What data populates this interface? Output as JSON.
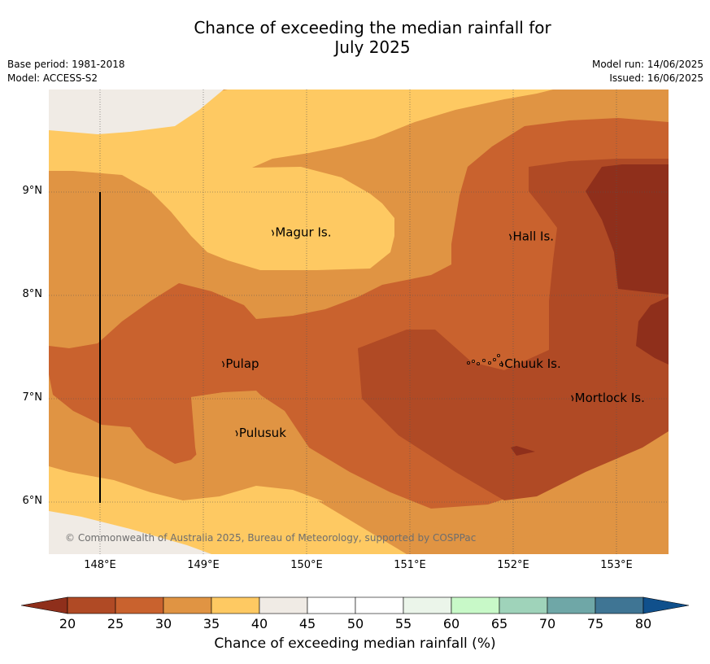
{
  "title_line1": "Chance of exceeding the median rainfall for",
  "title_line2": "July 2025",
  "meta_left": [
    "Base period: 1981-2018",
    "Model: ACCESS-S2"
  ],
  "meta_right": [
    "Model run: 14/06/2025",
    "Issued: 16/06/2025"
  ],
  "copyright": "© Commonwealth of Australia 2025, Bureau of Meteorology, supported by COSPPac",
  "lat_ticks": [
    {
      "value": 9,
      "label": "9°N"
    },
    {
      "value": 8,
      "label": "8°N"
    },
    {
      "value": 7,
      "label": "7°N"
    },
    {
      "value": 6,
      "label": "6°N"
    }
  ],
  "lon_ticks": [
    {
      "value": 148,
      "label": "148°E"
    },
    {
      "value": 149,
      "label": "149°E"
    },
    {
      "value": 150,
      "label": "150°E"
    },
    {
      "value": 151,
      "label": "151°E"
    },
    {
      "value": 152,
      "label": "152°E"
    },
    {
      "value": 153,
      "label": "153°E"
    }
  ],
  "places": [
    {
      "name": "Magur Is.",
      "lon": 149.68,
      "lat": 8.57
    },
    {
      "name": "Hall Is.",
      "lon": 151.98,
      "lat": 8.53
    },
    {
      "name": "Pulap",
      "lon": 149.2,
      "lat": 7.3
    },
    {
      "name": "Chuuk Is.",
      "lon": 151.9,
      "lat": 7.3
    },
    {
      "name": "Mortlock Is.",
      "lon": 152.58,
      "lat": 6.97
    },
    {
      "name": "Pulusuk",
      "lon": 149.33,
      "lat": 6.63
    }
  ],
  "colorbar": {
    "title": "Chance of exceeding median rainfall (%)",
    "ticks": [
      20,
      25,
      30,
      35,
      40,
      45,
      50,
      55,
      60,
      65,
      70,
      75,
      80
    ],
    "colors": [
      "#b04a25",
      "#c9622e",
      "#e09443",
      "#fec962",
      "#f0ebe5",
      "#ffffff",
      "#ffffff",
      "#ebf5ea",
      "#c8f9c8",
      "#9fd3ba",
      "#6fa7a7",
      "#3f7594"
    ],
    "under_color": "#8f2f1b",
    "over_color": "#10508c"
  }
}
